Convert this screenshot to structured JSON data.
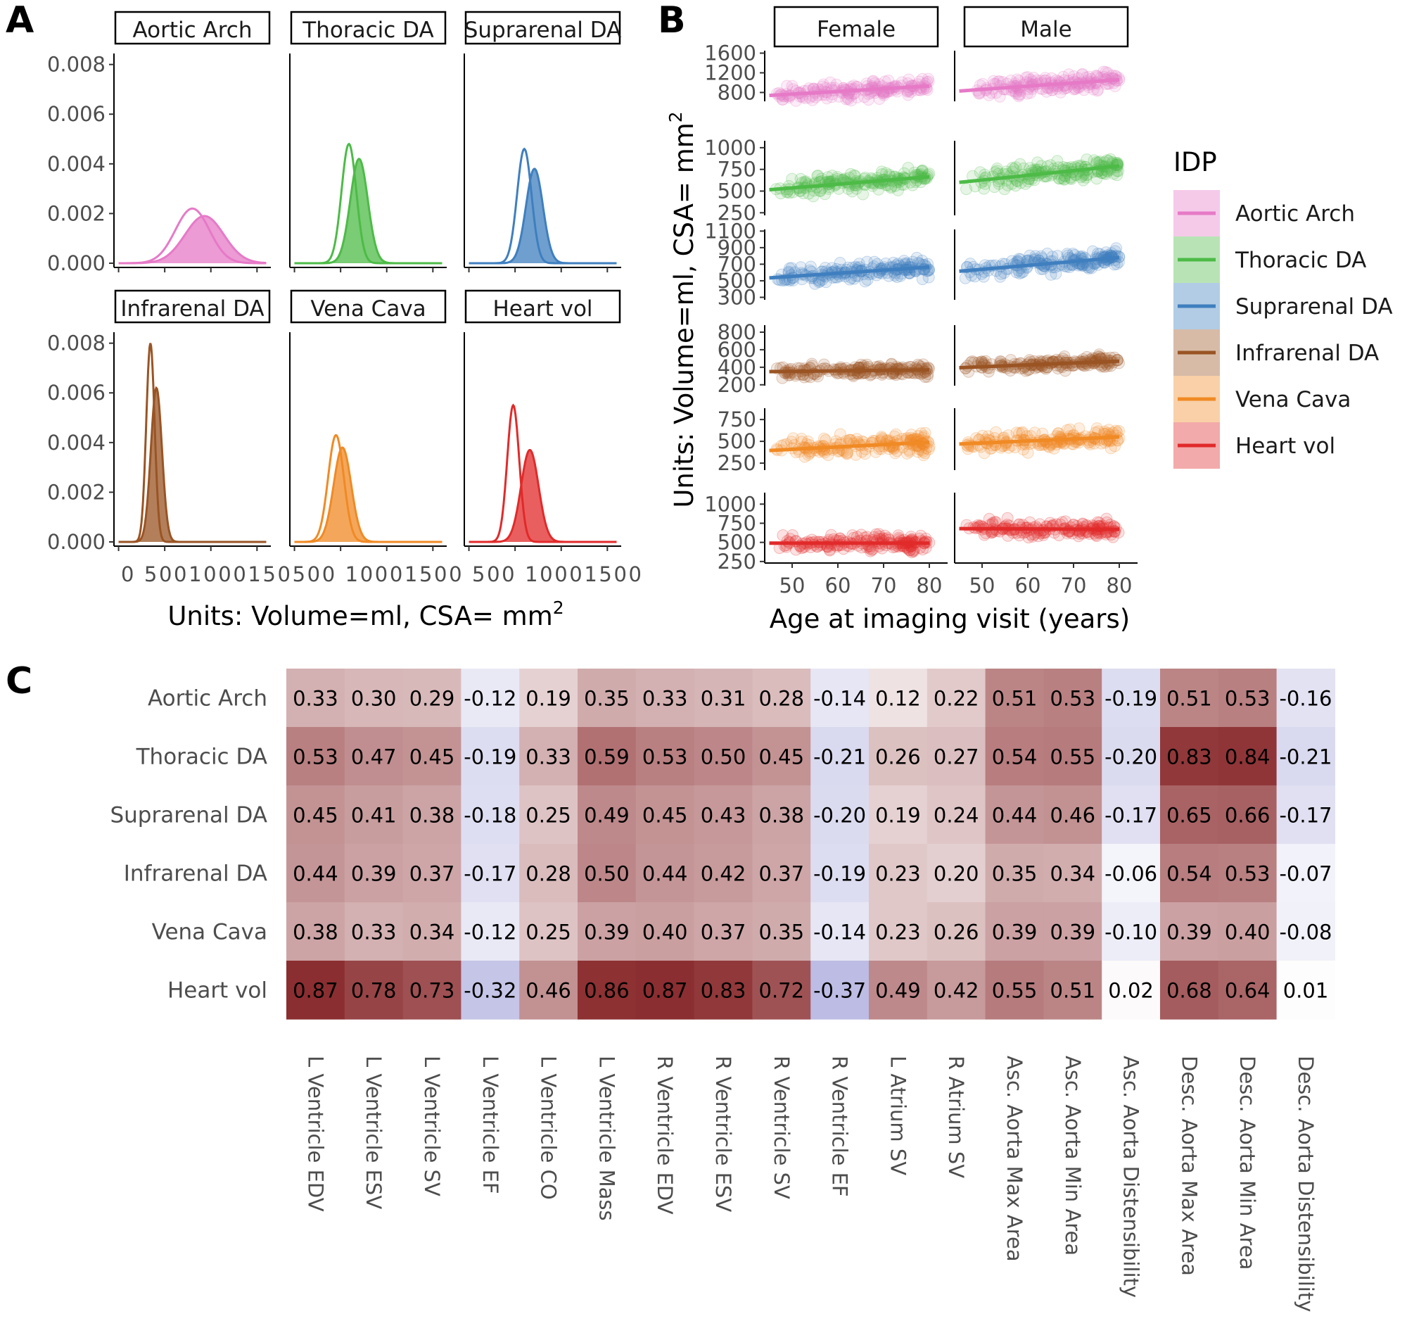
{
  "panels": {
    "a": "A",
    "b": "B",
    "c": "C"
  },
  "colors": {
    "Aortic Arch": "#e67ac7",
    "Thoracic DA": "#4dbb47",
    "Suprarenal DA": "#3f7fbf",
    "Infrarenal DA": "#9a5424",
    "Vena Cava": "#f08a24",
    "Heart vol": "#e12a2a"
  },
  "chart_data": [
    {
      "id": "A",
      "type": "area",
      "subtype": "density",
      "xlabel": "Units: Volume=ml, CSA= mm",
      "xlabel_sup": "2",
      "ylabel": "",
      "xlim": [
        -50,
        1650
      ],
      "ylim": [
        0,
        0.0085
      ],
      "x_ticks": [
        0,
        500,
        1000,
        1500
      ],
      "x_tick_labels": [
        "0",
        "500",
        "1000",
        "1500"
      ],
      "x_tick_label_text": "0 5001000150500 10001500 500 10001500",
      "y_ticks": [
        0,
        0.002,
        0.004,
        0.006,
        0.008
      ],
      "y_tick_labels": [
        "0.000",
        "0.002",
        "0.004",
        "0.006",
        "0.008"
      ],
      "facets": [
        {
          "label": "Aortic Arch",
          "strip_text": "Aortic Arch",
          "series": [
            {
              "group": "Female",
              "mean": 800,
              "sd": 185,
              "peak": 0.0022
            },
            {
              "group": "Male",
              "mean": 930,
              "sd": 210,
              "peak": 0.0019
            }
          ]
        },
        {
          "label": "Thoracic DA",
          "strip_text": "Thoracic DA",
          "series": [
            {
              "group": "Female",
              "mean": 590,
              "sd": 80,
              "peak": 0.0048
            },
            {
              "group": "Male",
              "mean": 700,
              "sd": 95,
              "peak": 0.0042
            }
          ]
        },
        {
          "label": "Suprarenal DA",
          "strip_text": "Suprarenal DA",
          "series": [
            {
              "group": "Female",
              "mean": 600,
              "sd": 78,
              "peak": 0.0046
            },
            {
              "group": "Male",
              "mean": 710,
              "sd": 92,
              "peak": 0.0038
            }
          ]
        },
        {
          "label": "Infrarenal DA",
          "strip_text": "Infrarenal DA",
          "series": [
            {
              "group": "Female",
              "mean": 345,
              "sd": 45,
              "peak": 0.008
            },
            {
              "group": "Male",
              "mean": 410,
              "sd": 60,
              "peak": 0.0062
            }
          ]
        },
        {
          "label": "Vena Cava",
          "strip_text": "Vena Cava",
          "series": [
            {
              "group": "Female",
              "mean": 450,
              "sd": 85,
              "peak": 0.0043
            },
            {
              "group": "Male",
              "mean": 520,
              "sd": 95,
              "peak": 0.0038
            }
          ]
        },
        {
          "label": "Heart vol",
          "strip_text": "Heart vol",
          "series": [
            {
              "group": "Female",
              "mean": 480,
              "sd": 65,
              "peak": 0.0055
            },
            {
              "group": "Male",
              "mean": 660,
              "sd": 95,
              "peak": 0.0037
            }
          ]
        }
      ]
    },
    {
      "id": "B",
      "type": "scatter",
      "xlabel": "Age at imaging visit (years)",
      "ylabel": "Units: Volume=ml, CSA= mm",
      "ylabel_sup": "2",
      "xlim": [
        44,
        84
      ],
      "x_ticks": [
        50,
        60,
        70,
        80
      ],
      "x_tick_labels": [
        "50",
        "60",
        "70",
        "80"
      ],
      "columns": [
        "Female",
        "Male"
      ],
      "legend_title": "IDP",
      "legend_position": "right",
      "legend": [
        "Aortic Arch",
        "Thoracic DA",
        "Suprarenal DA",
        "Infrarenal DA",
        "Vena Cava",
        "Heart vol"
      ],
      "rows": [
        {
          "label": "Aortic Arch",
          "ylim": [
            620,
            1650
          ],
          "y_ticks": [
            800,
            1200,
            1600
          ],
          "y_tick_labels": [
            "800",
            "1200",
            "1600"
          ],
          "fits": {
            "Female": [
              [
                45,
                740
              ],
              [
                80,
                930
              ]
            ],
            "Male": [
              [
                45,
                830
              ],
              [
                80,
                1060
              ]
            ]
          },
          "spread": 150
        },
        {
          "label": "Thoracic DA",
          "ylim": [
            220,
            1080
          ],
          "y_ticks": [
            250,
            500,
            750,
            1000
          ],
          "y_tick_labels": [
            "250",
            "500",
            "750",
            "1000"
          ],
          "fits": {
            "Female": [
              [
                45,
                515
              ],
              [
                80,
                665
              ]
            ],
            "Male": [
              [
                45,
                600
              ],
              [
                80,
                790
              ]
            ]
          },
          "spread": 95
        },
        {
          "label": "Suprarenal DA",
          "ylim": [
            270,
            1120
          ],
          "y_ticks": [
            300,
            500,
            700,
            900,
            1100
          ],
          "y_tick_labels": [
            "300",
            "500",
            "700",
            "900",
            "1100"
          ],
          "fits": {
            "Female": [
              [
                45,
                535
              ],
              [
                80,
                665
              ]
            ],
            "Male": [
              [
                45,
                615
              ],
              [
                80,
                780
              ]
            ]
          },
          "spread": 95
        },
        {
          "label": "Infrarenal DA",
          "ylim": [
            190,
            880
          ],
          "y_ticks": [
            200,
            400,
            600,
            800
          ],
          "y_tick_labels": [
            "200",
            "400",
            "600",
            "800"
          ],
          "fits": {
            "Female": [
              [
                45,
                350
              ],
              [
                80,
                370
              ]
            ],
            "Male": [
              [
                45,
                395
              ],
              [
                80,
                470
              ]
            ]
          },
          "spread": 60
        },
        {
          "label": "Vena Cava",
          "ylim": [
            170,
            880
          ],
          "y_ticks": [
            250,
            500,
            750
          ],
          "y_tick_labels": [
            "250",
            "500",
            "750"
          ],
          "fits": {
            "Female": [
              [
                45,
                395
              ],
              [
                80,
                490
              ]
            ],
            "Male": [
              [
                45,
                470
              ],
              [
                80,
                550
              ]
            ]
          },
          "spread": 95
        },
        {
          "label": "Heart vol",
          "ylim": [
            230,
            1150
          ],
          "y_ticks": [
            250,
            500,
            750,
            1000
          ],
          "y_tick_labels": [
            "250",
            "500",
            "750",
            "1000"
          ],
          "fits": {
            "Female": [
              [
                45,
                490
              ],
              [
                80,
                490
              ]
            ],
            "Male": [
              [
                45,
                680
              ],
              [
                80,
                670
              ]
            ]
          },
          "spread": 95
        }
      ]
    },
    {
      "id": "C",
      "type": "heatmap",
      "row_labels": [
        "Aortic Arch",
        "Thoracic DA",
        "Suprarenal DA",
        "Infrarenal DA",
        "Vena Cava",
        "Heart vol"
      ],
      "col_labels": [
        "L Ventricle EDV",
        "L Ventricle ESV",
        "L Ventricle SV",
        "L Ventricle EF",
        "L Ventricle CO",
        "L Ventricle Mass",
        "R Ventricle EDV",
        "R Ventricle ESV",
        "R Ventricle SV",
        "R Ventricle EF",
        "L Atrium SV",
        "R Atrium SV",
        "Asc. Aorta Max Area",
        "Asc. Aorta Min Area",
        "Asc. Aorta Distensibility",
        "Desc. Aorta Max Area",
        "Desc. Aorta Min Area",
        "Desc. Aorta Distensibility"
      ],
      "values": [
        [
          0.33,
          0.3,
          0.29,
          -0.12,
          0.19,
          0.35,
          0.33,
          0.31,
          0.28,
          -0.14,
          0.12,
          0.22,
          0.51,
          0.53,
          -0.19,
          0.51,
          0.53,
          -0.16
        ],
        [
          0.53,
          0.47,
          0.45,
          -0.19,
          0.33,
          0.59,
          0.53,
          0.5,
          0.45,
          -0.21,
          0.26,
          0.27,
          0.54,
          0.55,
          -0.2,
          0.83,
          0.84,
          -0.21
        ],
        [
          0.45,
          0.41,
          0.38,
          -0.18,
          0.25,
          0.49,
          0.45,
          0.43,
          0.38,
          -0.2,
          0.19,
          0.24,
          0.44,
          0.46,
          -0.17,
          0.65,
          0.66,
          -0.17
        ],
        [
          0.44,
          0.39,
          0.37,
          -0.17,
          0.28,
          0.5,
          0.44,
          0.42,
          0.37,
          -0.19,
          0.23,
          0.2,
          0.35,
          0.34,
          -0.06,
          0.54,
          0.53,
          -0.07
        ],
        [
          0.38,
          0.33,
          0.34,
          -0.12,
          0.25,
          0.39,
          0.4,
          0.37,
          0.35,
          -0.14,
          0.23,
          0.26,
          0.39,
          0.39,
          -0.1,
          0.39,
          0.4,
          -0.08
        ],
        [
          0.87,
          0.78,
          0.73,
          -0.32,
          0.46,
          0.86,
          0.87,
          0.83,
          0.72,
          -0.37,
          0.49,
          0.42,
          0.55,
          0.51,
          0.02,
          0.68,
          0.64,
          0.01
        ]
      ],
      "color_scale": {
        "low": "#4a4ab5",
        "mid": "#ffffff",
        "high": "#7a0f12",
        "domain": [
          -1,
          0,
          1
        ]
      }
    }
  ]
}
